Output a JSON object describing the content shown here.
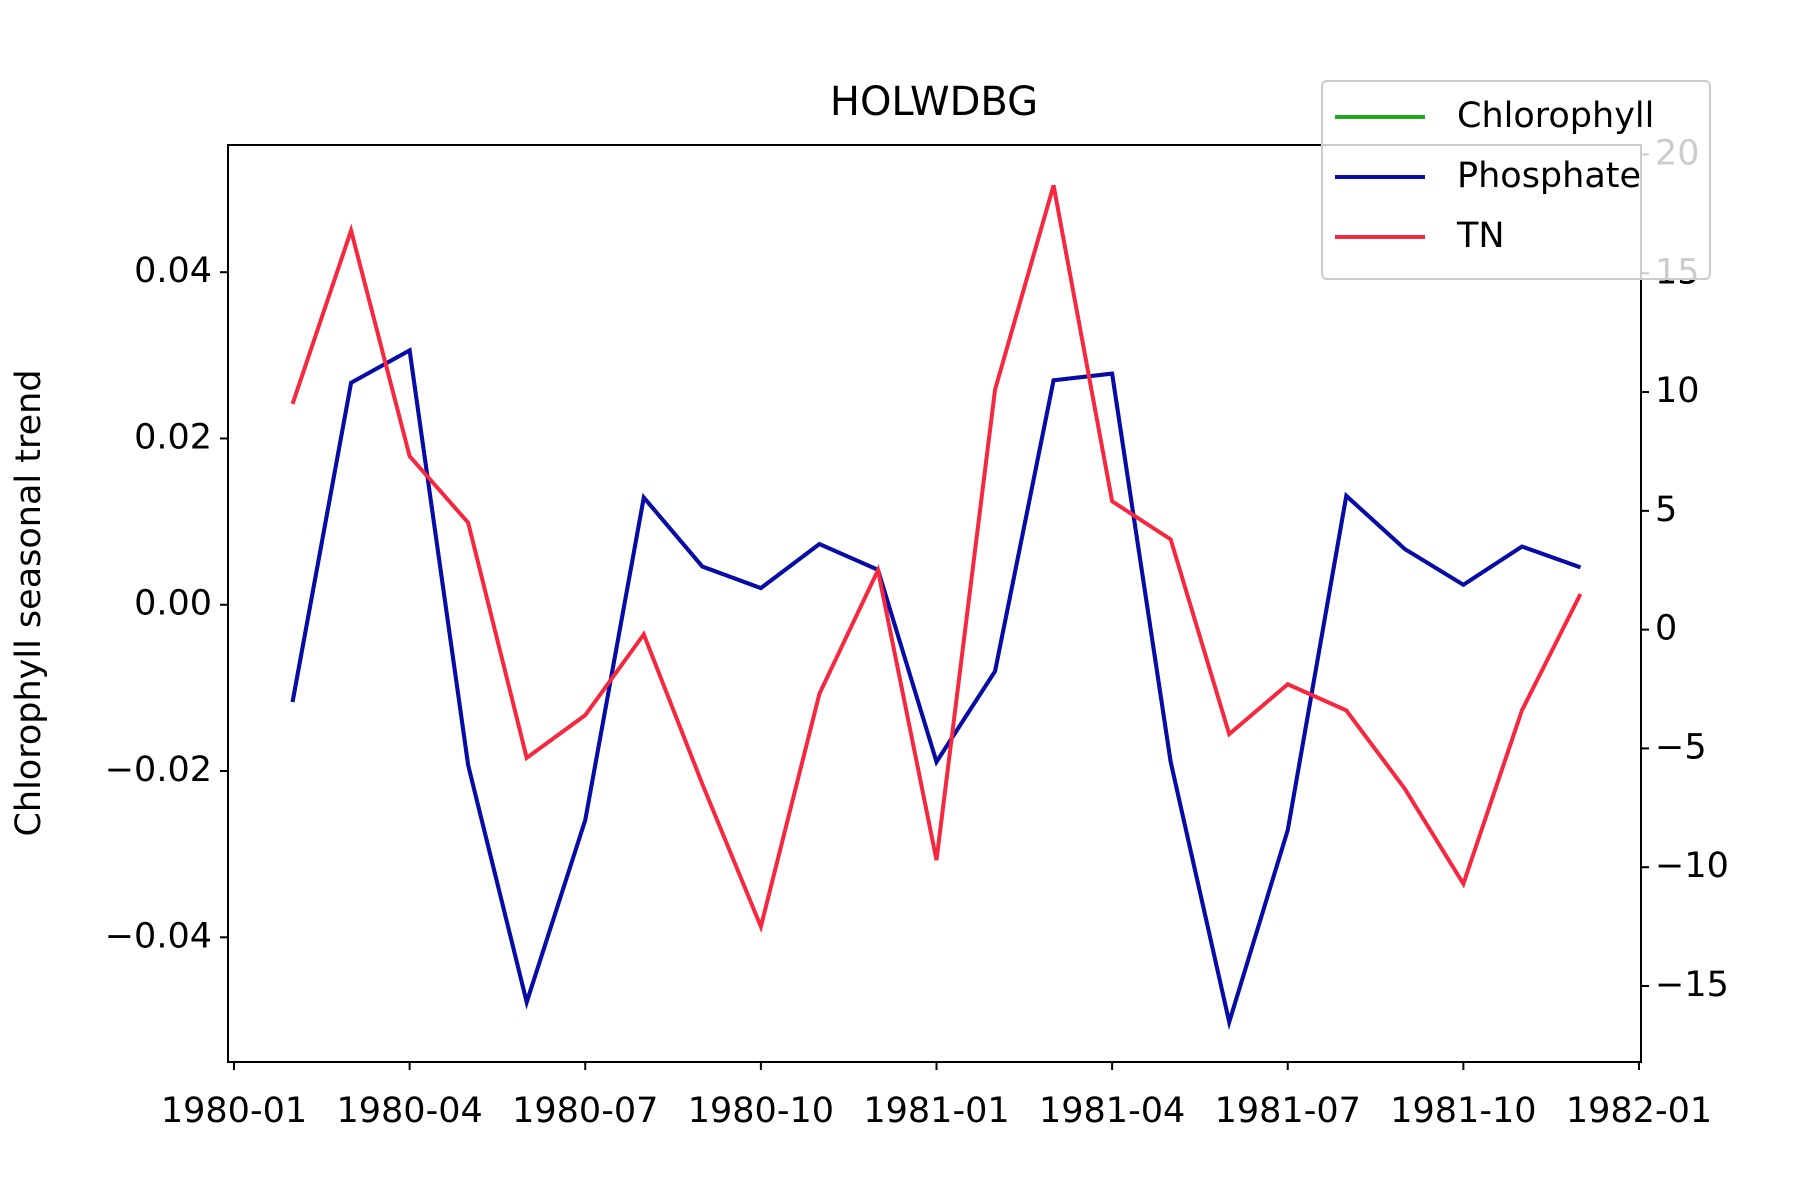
{
  "chart_data": {
    "type": "line",
    "title": "HOLWDBG",
    "ylabel": "Chlorophyll seasonal trend",
    "x": [
      "1980-02",
      "1980-03",
      "1980-04",
      "1980-05",
      "1980-06",
      "1980-07",
      "1980-08",
      "1980-09",
      "1980-10",
      "1980-11",
      "1980-12",
      "1981-01",
      "1981-02",
      "1981-03",
      "1981-04",
      "1981-05",
      "1981-06",
      "1981-07",
      "1981-08",
      "1981-09",
      "1981-10",
      "1981-11",
      "1981-12"
    ],
    "series": [
      {
        "name": "Chlorophyll",
        "color": "#1aaa1a",
        "values": [
          -0.0117,
          0.0267,
          0.0306,
          -0.0193,
          -0.0478,
          -0.0259,
          0.0129,
          0.0046,
          0.002,
          0.0073,
          0.0042,
          -0.0189,
          -0.008,
          0.027,
          0.0278,
          -0.0189,
          -0.0502,
          -0.0271,
          0.0131,
          0.0067,
          0.0024,
          0.007,
          0.0045
        ]
      },
      {
        "name": "Phosphate",
        "color": "#0a0aaa",
        "values": [
          -0.0117,
          0.0267,
          0.0306,
          -0.0193,
          -0.0478,
          -0.0259,
          0.0129,
          0.0046,
          0.002,
          0.0073,
          0.0042,
          -0.0189,
          -0.008,
          0.027,
          0.0278,
          -0.0189,
          -0.0502,
          -0.0271,
          0.0131,
          0.0067,
          0.0024,
          0.007,
          0.0045
        ]
      },
      {
        "name": "TN",
        "color": "#f5283f",
        "axis": "y2",
        "values": [
          9.5,
          16.8,
          7.3,
          4.5,
          -5.4,
          -3.6,
          -0.2,
          -6.5,
          -12.5,
          -2.7,
          2.5,
          -9.7,
          10.1,
          18.7,
          5.4,
          3.8,
          -4.4,
          -2.3,
          -3.4,
          -6.7,
          -10.7,
          -3.4,
          1.5
        ]
      }
    ],
    "xlim": [
      "1980-01",
      "1982-01"
    ],
    "xticks": [
      "1980-01",
      "1980-04",
      "1980-07",
      "1980-10",
      "1981-01",
      "1981-04",
      "1981-07",
      "1981-10",
      "1982-01"
    ],
    "ylim": [
      -0.055,
      0.0553
    ],
    "yticks": [
      {
        "value": -0.04,
        "label": "−0.04"
      },
      {
        "value": -0.02,
        "label": "−0.02"
      },
      {
        "value": 0,
        "label": "0.00"
      },
      0.02,
      0.04
    ],
    "y2lim": [
      -18.2,
      20.4
    ],
    "y2ticks": [
      {
        "value": -15,
        "label": "−15"
      },
      {
        "value": -10,
        "label": "−10"
      },
      {
        "value": -5,
        "label": "−5"
      },
      0,
      5,
      10,
      15,
      20
    ],
    "legend": "upper right"
  }
}
